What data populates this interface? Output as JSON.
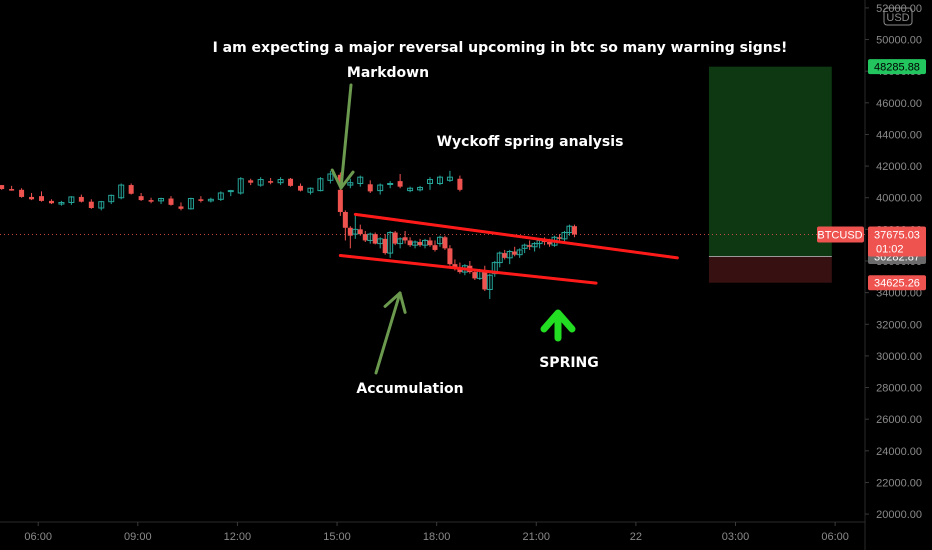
{
  "chart_data": {
    "type": "candlestick",
    "symbol": "BTCUSD",
    "currency_label": "USD",
    "y_ticks": [
      20000,
      22000,
      24000,
      26000,
      28000,
      30000,
      32000,
      34000,
      36000,
      38000,
      40000,
      42000,
      44000,
      46000,
      48000,
      50000,
      52000
    ],
    "y_ticks_labels": [
      "20000.00",
      "22000.00",
      "24000.00",
      "26000.00",
      "28000.00",
      "30000.00",
      "32000.00",
      "34000.00",
      "36000.00",
      "38000.00",
      "40000.00",
      "42000.00",
      "44000.00",
      "46000.00",
      "48000.00",
      "50000.00",
      "52000.00"
    ],
    "ylim": [
      19500,
      52500
    ],
    "x_labels": [
      "06:00",
      "09:00",
      "12:00",
      "15:00",
      "18:00",
      "21:00",
      "22",
      "03:00",
      "06:00"
    ],
    "x_label_times": [
      6,
      9,
      12,
      15,
      18,
      21,
      24,
      27,
      30
    ],
    "xlim": [
      4.85,
      30.9
    ],
    "current_price": 37675.03,
    "current_price_label": "37675.03",
    "countdown": "01:02",
    "stop_price_label": "36282.87",
    "target_price": 48285.88,
    "target_price_label": "48285.88",
    "stop_loss": 34625.26,
    "stop_loss_label": "34625.26",
    "entry_price": 36282.87,
    "position": {
      "t_start": 26.2,
      "t_end": 29.9,
      "target": 48285.88,
      "entry": 36282.87,
      "stop": 34625.26
    },
    "wedge_lines": [
      {
        "t1": 15.55,
        "p1": 38950,
        "t2": 25.25,
        "p2": 36200
      },
      {
        "t1": 15.1,
        "p1": 36350,
        "t2": 22.8,
        "p2": 34600
      }
    ],
    "candles": [
      [
        4.9,
        40800,
        40800,
        40500,
        40550
      ],
      [
        5.2,
        40550,
        40750,
        40450,
        40450
      ],
      [
        5.5,
        40500,
        40600,
        40000,
        40050
      ],
      [
        5.8,
        40050,
        40300,
        39850,
        39900
      ],
      [
        6.1,
        40100,
        40400,
        39750,
        39800
      ],
      [
        6.4,
        39800,
        39900,
        39600,
        39650
      ],
      [
        6.7,
        39600,
        39800,
        39500,
        39700
      ],
      [
        7.0,
        39700,
        40100,
        39550,
        40050
      ],
      [
        7.3,
        40050,
        40200,
        39700,
        39750
      ],
      [
        7.6,
        39750,
        39900,
        39300,
        39350
      ],
      [
        7.9,
        39350,
        39800,
        39200,
        39750
      ],
      [
        8.2,
        39750,
        40200,
        39600,
        40150
      ],
      [
        8.5,
        40000,
        40900,
        39900,
        40800
      ],
      [
        8.8,
        40800,
        40900,
        40200,
        40250
      ],
      [
        9.1,
        40100,
        40300,
        39800,
        39850
      ],
      [
        9.4,
        39850,
        40000,
        39650,
        39750
      ],
      [
        9.7,
        39800,
        40000,
        39600,
        39950
      ],
      [
        10.0,
        39950,
        40100,
        39500,
        39550
      ],
      [
        10.3,
        39450,
        39700,
        39200,
        39300
      ],
      [
        10.6,
        39300,
        40000,
        39250,
        39950
      ],
      [
        10.9,
        39900,
        40100,
        39700,
        39800
      ],
      [
        11.2,
        39800,
        40000,
        39700,
        39900
      ],
      [
        11.5,
        39900,
        40400,
        39800,
        40300
      ],
      [
        11.8,
        40400,
        40500,
        40100,
        40450
      ],
      [
        12.1,
        40300,
        41300,
        40200,
        41200
      ],
      [
        12.4,
        41100,
        41200,
        40800,
        40950
      ],
      [
        12.7,
        40800,
        41300,
        40700,
        41150
      ],
      [
        13.0,
        41050,
        41250,
        40850,
        40950
      ],
      [
        13.3,
        40950,
        41300,
        40800,
        41150
      ],
      [
        13.6,
        41200,
        41250,
        40700,
        40750
      ],
      [
        13.9,
        40750,
        40900,
        40400,
        40450
      ],
      [
        14.2,
        40350,
        40650,
        40200,
        40600
      ],
      [
        14.5,
        40450,
        41300,
        40400,
        41200
      ],
      [
        14.8,
        41100,
        41700,
        40900,
        41500
      ],
      [
        15.1,
        41450,
        41600,
        40800,
        40900
      ],
      [
        15.4,
        40800,
        41200,
        40600,
        40950
      ],
      [
        15.7,
        40900,
        41400,
        40700,
        41300
      ],
      [
        16.0,
        40850,
        41100,
        40300,
        40400
      ],
      [
        16.3,
        40450,
        40900,
        40200,
        40800
      ],
      [
        16.6,
        40850,
        41050,
        40600,
        40900
      ],
      [
        16.9,
        41050,
        41500,
        40600,
        40700
      ],
      [
        17.2,
        40450,
        40700,
        40350,
        40600
      ],
      [
        17.5,
        40500,
        40750,
        40400,
        40650
      ],
      [
        17.8,
        40900,
        41300,
        40500,
        41150
      ],
      [
        18.1,
        40900,
        41400,
        40800,
        41300
      ],
      [
        18.4,
        41100,
        41700,
        41000,
        41300
      ],
      [
        18.7,
        41200,
        41400,
        40400,
        40500
      ],
      [
        19.0,
        40500,
        40700,
        38850,
        39100
      ],
      [
        19.3,
        39100,
        39200,
        37300,
        38100
      ],
      [
        19.6,
        38100,
        38200,
        36800,
        37600
      ],
      [
        19.9,
        37700,
        38900,
        37400,
        38000
      ],
      [
        20.2,
        38000,
        38300,
        37600,
        37700
      ],
      [
        20.5,
        37700,
        37900,
        37200,
        37300
      ],
      [
        20.8,
        37300,
        37800,
        37100,
        37700
      ],
      [
        21.1,
        37700,
        37800,
        37050,
        37100
      ],
      [
        21.4,
        37100,
        37500,
        36800,
        37400
      ],
      [
        21.7,
        37400,
        37700,
        36400,
        36500
      ],
      [
        22.0,
        36500,
        37900,
        36200,
        37800
      ],
      [
        22.3,
        37800,
        37900,
        37000,
        37100
      ],
      [
        22.6,
        37100,
        37500,
        36800,
        37400
      ],
      [
        22.9,
        37500,
        37900,
        37100,
        37300
      ],
      [
        23.2,
        37300,
        37500,
        36900,
        37000
      ],
      [
        23.5,
        37000,
        37300,
        36800,
        37200
      ],
      [
        23.8,
        37200,
        37400,
        36900,
        37000
      ],
      [
        24.1,
        37000,
        37400,
        36800,
        37300
      ],
      [
        24.4,
        37300,
        37500,
        36900,
        37000
      ],
      [
        24.7,
        37000,
        37300,
        36600,
        36700
      ],
      [
        25.0,
        37100,
        37600,
        36900,
        37500
      ],
      [
        25.3,
        37500,
        37600,
        36700,
        36800
      ],
      [
        25.6,
        36800,
        37000,
        35700,
        35800
      ],
      [
        25.9,
        35800,
        36100,
        35400,
        35500
      ],
      [
        26.2,
        35500,
        35900,
        35200,
        35300
      ],
      [
        26.5,
        35300,
        35800,
        35100,
        35700
      ],
      [
        26.8,
        35700,
        36000,
        35200,
        35300
      ],
      [
        27.1,
        35300,
        35500,
        34800,
        34900
      ],
      [
        27.4,
        34900,
        35500,
        34800,
        35400
      ],
      [
        27.7,
        35400,
        35700,
        34100,
        34200
      ],
      [
        28.0,
        34200,
        35200,
        33600,
        35100
      ],
      [
        28.3,
        35200,
        36000,
        35000,
        35900
      ],
      [
        28.6,
        35900,
        36600,
        35600,
        36500
      ],
      [
        28.9,
        36500,
        36700,
        36100,
        36200
      ],
      [
        29.2,
        36200,
        36700,
        35800,
        36600
      ],
      [
        29.5,
        36600,
        36900,
        36300,
        36400
      ],
      [
        29.8,
        36400,
        36800,
        36200,
        36700
      ],
      [
        30.1,
        36800,
        37100,
        36500,
        37000
      ],
      [
        30.4,
        37000,
        37300,
        36700,
        36900
      ],
      [
        30.7,
        36900,
        37200,
        36600,
        37100
      ],
      [
        31.0,
        37100,
        37400,
        36800,
        37300
      ],
      [
        31.3,
        37300,
        37500,
        37000,
        37200
      ],
      [
        31.6,
        37200,
        37400,
        36900,
        37050
      ],
      [
        31.9,
        37000,
        37600,
        36900,
        37500
      ],
      [
        32.2,
        37500,
        37700,
        37300,
        37400
      ],
      [
        32.5,
        37400,
        37900,
        37200,
        37800
      ],
      [
        32.8,
        37800,
        38300,
        37600,
        38200
      ],
      [
        33.1,
        38200,
        38300,
        37500,
        37675
      ]
    ],
    "candle_time_map": {
      "source_start": 19.0,
      "target_start": 15.1,
      "scale": 0.5
    },
    "colors": {
      "up": "#26a69a",
      "down": "#ef5350",
      "wedge": "#ff1a1a",
      "arrow": "#6b9a4f",
      "spring_arrow": "#22dd22",
      "target_zone": "#0e3b12",
      "stop_zone": "#3a1212",
      "tag_green": "#22c55e",
      "tag_red": "#ef5350",
      "tag_gray": "#6b6b6b"
    }
  },
  "annotations": {
    "headline": "I am expecting a major reversal upcoming in btc so many warning signs!",
    "markdown": "Markdown",
    "wyckoff": "Wyckoff spring analysis",
    "accumulation": "Accumulation",
    "spring": "SPRING"
  }
}
